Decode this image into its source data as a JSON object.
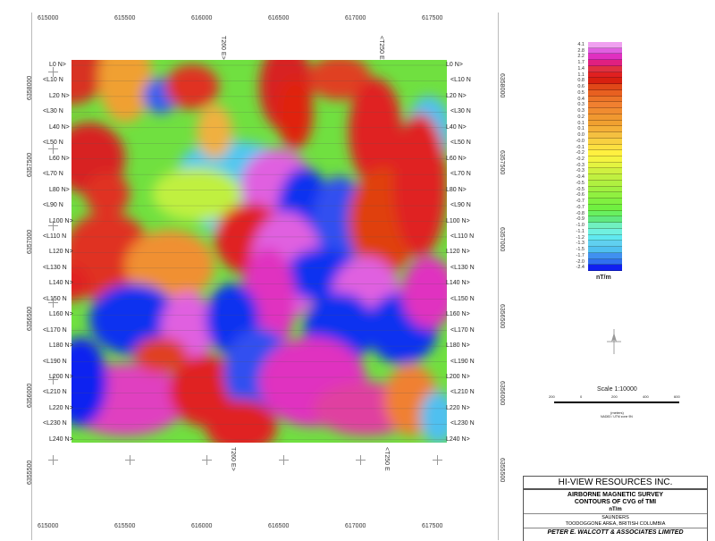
{
  "eastings": [
    "615000",
    "615500",
    "616000",
    "616500",
    "617000",
    "617500"
  ],
  "northings": [
    "6358000",
    "6357500",
    "6357000",
    "6356500",
    "6356000",
    "6355500"
  ],
  "tie_lines": {
    "top": [
      "T260 E>",
      "<T250 E"
    ],
    "bottom": [
      "T260 E>",
      "<T250 E"
    ]
  },
  "flight_lines": [
    "L0 N>",
    "<L10 N",
    "L20 N>",
    "<L30 N",
    "L40 N>",
    "<L50 N",
    "L60 N>",
    "<L70 N",
    "L80 N>",
    "<L90 N",
    "L100 N>",
    "<L110 N",
    "L120 N>",
    "<L130 N",
    "L140 N>",
    "<L150 N",
    "L160 N>",
    "<L170 N",
    "L180 N>",
    "<L190 N",
    "L200 N>",
    "<L210 N",
    "L220 N>",
    "<L230 N",
    "L240 N>"
  ],
  "legend": {
    "unit": "nT/m",
    "labels": [
      "4.1",
      "2.8",
      "2.2",
      "1.7",
      "1.4",
      "1.1",
      "0.8",
      "0.6",
      "0.5",
      "0.4",
      "0.3",
      "0.3",
      "0.2",
      "0.1",
      "0.1",
      "0.0",
      "-0.0",
      "-0.1",
      "-0.2",
      "-0.2",
      "-0.3",
      "-0.3",
      "-0.4",
      "-0.5",
      "-0.5",
      "-0.6",
      "-0.7",
      "-0.7",
      "-0.8",
      "-0.9",
      "-1.0",
      "-1.1",
      "-1.2",
      "-1.3",
      "-1.5",
      "-1.7",
      "-2.0",
      "-2.4"
    ],
    "colors": [
      "#f0a0f0",
      "#e060e0",
      "#e030c0",
      "#e02080",
      "#e03040",
      "#e02020",
      "#d82010",
      "#e04818",
      "#e86020",
      "#ec7428",
      "#f08030",
      "#f08c30",
      "#f09830",
      "#f0a030",
      "#f4b038",
      "#f4c040",
      "#f8d040",
      "#fce040",
      "#fff040",
      "#f4f440",
      "#e4f440",
      "#d0f040",
      "#c0f040",
      "#b0f040",
      "#a0f040",
      "#90f040",
      "#80f040",
      "#70f040",
      "#68f060",
      "#60e880",
      "#70f0c0",
      "#70f0e0",
      "#60e8f0",
      "#60d0f0",
      "#50c0f0",
      "#4090f0",
      "#3070f0",
      "#1020f0"
    ]
  },
  "scale": {
    "title": "Scale 1:10000",
    "ticks": [
      "200",
      "0",
      "200",
      "400",
      "600"
    ],
    "unit": "(meters)",
    "datum": "NAD83 / UTM zone 9N"
  },
  "title_block": {
    "company": "HI-VIEW RESOURCES INC.",
    "survey": "AIRBORNE MAGNETIC SURVEY",
    "product": "CONTOURS OF CVG of TMI",
    "unit": "nT/m",
    "property": "SAUNDERS",
    "area": "TOODOGGONE AREA, BRITISH COLUMBIA",
    "contractor": "PETER E. WALCOTT & ASSOCIATES LIMITED"
  }
}
